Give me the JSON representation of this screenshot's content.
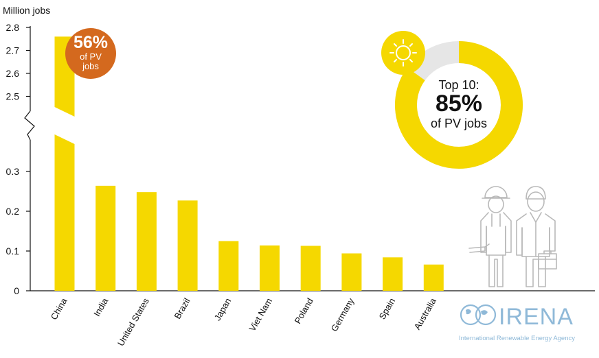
{
  "chart_data": {
    "type": "bar",
    "unit_label": "Million jobs",
    "categories": [
      "China",
      "India",
      "United States",
      "Brazil",
      "Japan",
      "Viet Nam",
      "Poland",
      "Germany",
      "Spain",
      "Australia"
    ],
    "values": [
      2.76,
      0.264,
      0.248,
      0.227,
      0.125,
      0.114,
      0.113,
      0.094,
      0.084,
      0.066
    ],
    "y_axis_break": true,
    "lower_ylim": [
      0,
      0.35
    ],
    "upper_ylim": [
      2.5,
      2.8
    ],
    "yticks_lower": [
      "0",
      "0.1",
      "0.2",
      "0.3"
    ],
    "yticks_upper": [
      "2.5",
      "2.6",
      "2.7",
      "2.8"
    ],
    "grid": false,
    "bar_color": "#f5d800"
  },
  "badge": {
    "value": "56%",
    "line1": "of PV",
    "line2": "jobs",
    "color": "#d4691e"
  },
  "donut": {
    "share": 0.85,
    "line1": "Top 10:",
    "value": "85%",
    "line2": "of PV jobs",
    "fill_color": "#f5d800",
    "rest_color": "#e6e6e6",
    "icon": "sun-icon"
  },
  "illustration": {
    "icon": "workers-icon"
  },
  "logo": {
    "name": "IRENA",
    "subtitle": "International Renewable Energy Agency",
    "color": "#8fb9d8"
  }
}
